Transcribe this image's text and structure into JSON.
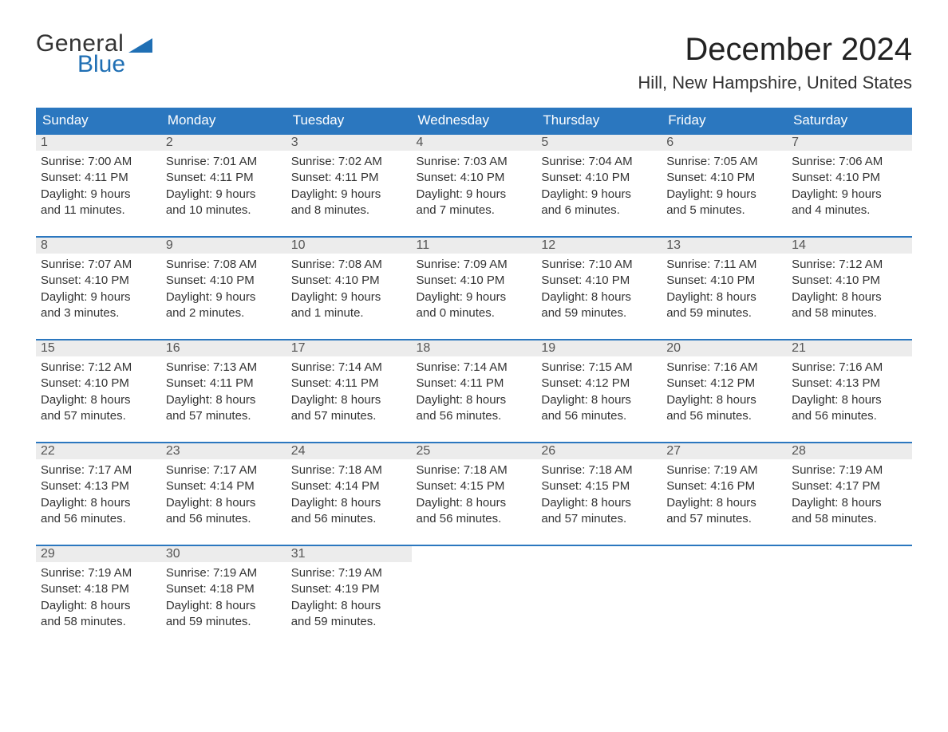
{
  "brand": {
    "word1": "General",
    "word2": "Blue"
  },
  "title": "December 2024",
  "location": "Hill, New Hampshire, United States",
  "colors": {
    "header_bg": "#2b77bf",
    "header_fg": "#ffffff",
    "row_sep": "#2b77bf",
    "daynum_bg": "#ececec",
    "brand": "#1f6fb4",
    "body_fg": "#333333",
    "page_bg": "#ffffff"
  },
  "dayHeaders": [
    "Sunday",
    "Monday",
    "Tuesday",
    "Wednesday",
    "Thursday",
    "Friday",
    "Saturday"
  ],
  "weeks": [
    [
      {
        "n": "1",
        "sunrise": "Sunrise: 7:00 AM",
        "sunset": "Sunset: 4:11 PM",
        "day1": "Daylight: 9 hours",
        "day2": "and 11 minutes."
      },
      {
        "n": "2",
        "sunrise": "Sunrise: 7:01 AM",
        "sunset": "Sunset: 4:11 PM",
        "day1": "Daylight: 9 hours",
        "day2": "and 10 minutes."
      },
      {
        "n": "3",
        "sunrise": "Sunrise: 7:02 AM",
        "sunset": "Sunset: 4:11 PM",
        "day1": "Daylight: 9 hours",
        "day2": "and 8 minutes."
      },
      {
        "n": "4",
        "sunrise": "Sunrise: 7:03 AM",
        "sunset": "Sunset: 4:10 PM",
        "day1": "Daylight: 9 hours",
        "day2": "and 7 minutes."
      },
      {
        "n": "5",
        "sunrise": "Sunrise: 7:04 AM",
        "sunset": "Sunset: 4:10 PM",
        "day1": "Daylight: 9 hours",
        "day2": "and 6 minutes."
      },
      {
        "n": "6",
        "sunrise": "Sunrise: 7:05 AM",
        "sunset": "Sunset: 4:10 PM",
        "day1": "Daylight: 9 hours",
        "day2": "and 5 minutes."
      },
      {
        "n": "7",
        "sunrise": "Sunrise: 7:06 AM",
        "sunset": "Sunset: 4:10 PM",
        "day1": "Daylight: 9 hours",
        "day2": "and 4 minutes."
      }
    ],
    [
      {
        "n": "8",
        "sunrise": "Sunrise: 7:07 AM",
        "sunset": "Sunset: 4:10 PM",
        "day1": "Daylight: 9 hours",
        "day2": "and 3 minutes."
      },
      {
        "n": "9",
        "sunrise": "Sunrise: 7:08 AM",
        "sunset": "Sunset: 4:10 PM",
        "day1": "Daylight: 9 hours",
        "day2": "and 2 minutes."
      },
      {
        "n": "10",
        "sunrise": "Sunrise: 7:08 AM",
        "sunset": "Sunset: 4:10 PM",
        "day1": "Daylight: 9 hours",
        "day2": "and 1 minute."
      },
      {
        "n": "11",
        "sunrise": "Sunrise: 7:09 AM",
        "sunset": "Sunset: 4:10 PM",
        "day1": "Daylight: 9 hours",
        "day2": "and 0 minutes."
      },
      {
        "n": "12",
        "sunrise": "Sunrise: 7:10 AM",
        "sunset": "Sunset: 4:10 PM",
        "day1": "Daylight: 8 hours",
        "day2": "and 59 minutes."
      },
      {
        "n": "13",
        "sunrise": "Sunrise: 7:11 AM",
        "sunset": "Sunset: 4:10 PM",
        "day1": "Daylight: 8 hours",
        "day2": "and 59 minutes."
      },
      {
        "n": "14",
        "sunrise": "Sunrise: 7:12 AM",
        "sunset": "Sunset: 4:10 PM",
        "day1": "Daylight: 8 hours",
        "day2": "and 58 minutes."
      }
    ],
    [
      {
        "n": "15",
        "sunrise": "Sunrise: 7:12 AM",
        "sunset": "Sunset: 4:10 PM",
        "day1": "Daylight: 8 hours",
        "day2": "and 57 minutes."
      },
      {
        "n": "16",
        "sunrise": "Sunrise: 7:13 AM",
        "sunset": "Sunset: 4:11 PM",
        "day1": "Daylight: 8 hours",
        "day2": "and 57 minutes."
      },
      {
        "n": "17",
        "sunrise": "Sunrise: 7:14 AM",
        "sunset": "Sunset: 4:11 PM",
        "day1": "Daylight: 8 hours",
        "day2": "and 57 minutes."
      },
      {
        "n": "18",
        "sunrise": "Sunrise: 7:14 AM",
        "sunset": "Sunset: 4:11 PM",
        "day1": "Daylight: 8 hours",
        "day2": "and 56 minutes."
      },
      {
        "n": "19",
        "sunrise": "Sunrise: 7:15 AM",
        "sunset": "Sunset: 4:12 PM",
        "day1": "Daylight: 8 hours",
        "day2": "and 56 minutes."
      },
      {
        "n": "20",
        "sunrise": "Sunrise: 7:16 AM",
        "sunset": "Sunset: 4:12 PM",
        "day1": "Daylight: 8 hours",
        "day2": "and 56 minutes."
      },
      {
        "n": "21",
        "sunrise": "Sunrise: 7:16 AM",
        "sunset": "Sunset: 4:13 PM",
        "day1": "Daylight: 8 hours",
        "day2": "and 56 minutes."
      }
    ],
    [
      {
        "n": "22",
        "sunrise": "Sunrise: 7:17 AM",
        "sunset": "Sunset: 4:13 PM",
        "day1": "Daylight: 8 hours",
        "day2": "and 56 minutes."
      },
      {
        "n": "23",
        "sunrise": "Sunrise: 7:17 AM",
        "sunset": "Sunset: 4:14 PM",
        "day1": "Daylight: 8 hours",
        "day2": "and 56 minutes."
      },
      {
        "n": "24",
        "sunrise": "Sunrise: 7:18 AM",
        "sunset": "Sunset: 4:14 PM",
        "day1": "Daylight: 8 hours",
        "day2": "and 56 minutes."
      },
      {
        "n": "25",
        "sunrise": "Sunrise: 7:18 AM",
        "sunset": "Sunset: 4:15 PM",
        "day1": "Daylight: 8 hours",
        "day2": "and 56 minutes."
      },
      {
        "n": "26",
        "sunrise": "Sunrise: 7:18 AM",
        "sunset": "Sunset: 4:15 PM",
        "day1": "Daylight: 8 hours",
        "day2": "and 57 minutes."
      },
      {
        "n": "27",
        "sunrise": "Sunrise: 7:19 AM",
        "sunset": "Sunset: 4:16 PM",
        "day1": "Daylight: 8 hours",
        "day2": "and 57 minutes."
      },
      {
        "n": "28",
        "sunrise": "Sunrise: 7:19 AM",
        "sunset": "Sunset: 4:17 PM",
        "day1": "Daylight: 8 hours",
        "day2": "and 58 minutes."
      }
    ],
    [
      {
        "n": "29",
        "sunrise": "Sunrise: 7:19 AM",
        "sunset": "Sunset: 4:18 PM",
        "day1": "Daylight: 8 hours",
        "day2": "and 58 minutes."
      },
      {
        "n": "30",
        "sunrise": "Sunrise: 7:19 AM",
        "sunset": "Sunset: 4:18 PM",
        "day1": "Daylight: 8 hours",
        "day2": "and 59 minutes."
      },
      {
        "n": "31",
        "sunrise": "Sunrise: 7:19 AM",
        "sunset": "Sunset: 4:19 PM",
        "day1": "Daylight: 8 hours",
        "day2": "and 59 minutes."
      },
      null,
      null,
      null,
      null
    ]
  ]
}
